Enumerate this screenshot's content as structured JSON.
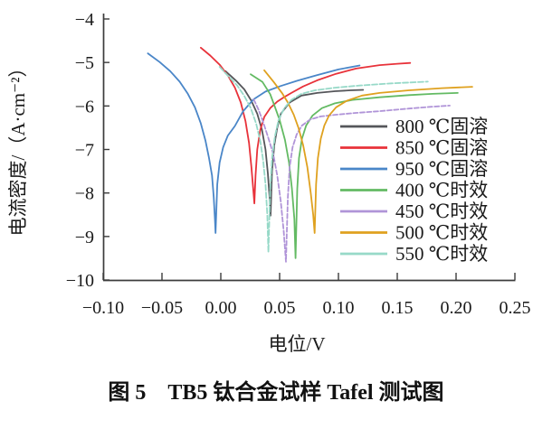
{
  "figure": {
    "caption": "图 5　TB5 钛合金试样 Tafel 测试图"
  },
  "chart_data": {
    "type": "line",
    "title": "",
    "xlabel": "电位/V",
    "ylabel": "电流密度/（A·cm⁻²）",
    "xlim": [
      -0.1,
      0.25
    ],
    "ylim": [
      -10,
      -4
    ],
    "grid": false,
    "legend_position": "inside-right",
    "axis_color": "#3c3c3c",
    "x_ticks": [
      "−0.10",
      "−0.05",
      "0.00",
      "0.05",
      "0.10",
      "0.15",
      "0.20",
      "0.25"
    ],
    "x_tick_values": [
      -0.1,
      -0.05,
      0.0,
      0.05,
      0.1,
      0.15,
      0.2,
      0.25
    ],
    "y_ticks": [
      "−4",
      "−5",
      "−6",
      "−7",
      "−8",
      "−9",
      "−10"
    ],
    "y_tick_values": [
      -4,
      -5,
      -6,
      -7,
      -8,
      -9,
      -10
    ],
    "series": [
      {
        "key": "800c-solution",
        "name": "800 ℃固溶",
        "color": "#55565a",
        "dash": "",
        "ecorr_V": 0.042,
        "icorr_log": -8.52,
        "points": [
          [
            0.004,
            -5.2
          ],
          [
            0.013,
            -5.42
          ],
          [
            0.02,
            -5.62
          ],
          [
            0.026,
            -5.88
          ],
          [
            0.031,
            -6.18
          ],
          [
            0.035,
            -6.55
          ],
          [
            0.038,
            -7.0
          ],
          [
            0.04,
            -7.55
          ],
          [
            0.0415,
            -8.1
          ],
          [
            0.0423,
            -8.52
          ],
          [
            0.0435,
            -7.5
          ],
          [
            0.0455,
            -6.9
          ],
          [
            0.048,
            -6.5
          ],
          [
            0.051,
            -6.18
          ],
          [
            0.0585,
            -5.92
          ],
          [
            0.0685,
            -5.76
          ],
          [
            0.082,
            -5.7
          ],
          [
            0.097,
            -5.66
          ],
          [
            0.11,
            -5.64
          ],
          [
            0.121,
            -5.63
          ]
        ]
      },
      {
        "key": "850c-solution",
        "name": "850 ℃固溶",
        "color": "#e8323a",
        "dash": "",
        "ecorr_V": 0.0285,
        "icorr_log": -8.24,
        "points": [
          [
            -0.017,
            -4.66
          ],
          [
            -0.009,
            -4.84
          ],
          [
            -0.001,
            -5.05
          ],
          [
            0.006,
            -5.3
          ],
          [
            0.012,
            -5.58
          ],
          [
            0.017,
            -5.92
          ],
          [
            0.021,
            -6.35
          ],
          [
            0.024,
            -6.85
          ],
          [
            0.026,
            -7.4
          ],
          [
            0.0275,
            -7.9
          ],
          [
            0.0285,
            -8.24
          ],
          [
            0.0295,
            -7.6
          ],
          [
            0.031,
            -7.0
          ],
          [
            0.0335,
            -6.55
          ],
          [
            0.037,
            -6.25
          ],
          [
            0.042,
            -6.05
          ],
          [
            0.048,
            -5.9
          ],
          [
            0.053,
            -5.81
          ],
          [
            0.06,
            -5.7
          ],
          [
            0.07,
            -5.55
          ],
          [
            0.082,
            -5.41
          ],
          [
            0.098,
            -5.26
          ],
          [
            0.115,
            -5.14
          ],
          [
            0.135,
            -5.06
          ],
          [
            0.15,
            -5.03
          ],
          [
            0.161,
            -5.01
          ]
        ]
      },
      {
        "key": "950c-solution",
        "name": "950 ℃固溶",
        "color": "#4a86c8",
        "dash": "",
        "ecorr_V": -0.004,
        "icorr_log": -8.92,
        "points": [
          [
            -0.062,
            -4.79
          ],
          [
            -0.052,
            -4.99
          ],
          [
            -0.043,
            -5.2
          ],
          [
            -0.035,
            -5.44
          ],
          [
            -0.028,
            -5.72
          ],
          [
            -0.022,
            -6.03
          ],
          [
            -0.017,
            -6.4
          ],
          [
            -0.013,
            -6.8
          ],
          [
            -0.01,
            -7.2
          ],
          [
            -0.0075,
            -7.6
          ],
          [
            -0.006,
            -8.1
          ],
          [
            -0.005,
            -8.6
          ],
          [
            -0.0045,
            -8.92
          ],
          [
            -0.003,
            -7.8
          ],
          [
            -0.001,
            -7.3
          ],
          [
            0.002,
            -6.95
          ],
          [
            0.006,
            -6.68
          ],
          [
            0.012,
            -6.46
          ],
          [
            0.019,
            -6.12
          ],
          [
            0.0277,
            -5.85
          ],
          [
            0.038,
            -5.67
          ],
          [
            0.051,
            -5.54
          ],
          [
            0.065,
            -5.42
          ],
          [
            0.082,
            -5.29
          ],
          [
            0.1,
            -5.16
          ],
          [
            0.118,
            -5.07
          ]
        ]
      },
      {
        "key": "400c-aging",
        "name": "400 ℃时效",
        "color": "#63ba63",
        "dash": "",
        "ecorr_V": 0.0635,
        "icorr_log": -9.5,
        "points": [
          [
            0.0254,
            -5.27
          ],
          [
            0.0355,
            -5.45
          ],
          [
            0.042,
            -5.73
          ],
          [
            0.0455,
            -5.98
          ],
          [
            0.05,
            -6.32
          ],
          [
            0.0545,
            -6.78
          ],
          [
            0.058,
            -7.3
          ],
          [
            0.0605,
            -7.9
          ],
          [
            0.0625,
            -8.6
          ],
          [
            0.0635,
            -9.5
          ],
          [
            0.065,
            -7.9
          ],
          [
            0.0665,
            -7.2
          ],
          [
            0.069,
            -6.75
          ],
          [
            0.0725,
            -6.45
          ],
          [
            0.078,
            -6.22
          ],
          [
            0.086,
            -6.05
          ],
          [
            0.097,
            -5.94
          ],
          [
            0.112,
            -5.86
          ],
          [
            0.135,
            -5.8
          ],
          [
            0.16,
            -5.75
          ],
          [
            0.18,
            -5.72
          ],
          [
            0.2015,
            -5.7
          ]
        ]
      },
      {
        "key": "450c-aging",
        "name": "450 ℃时效",
        "color": "#b094d8",
        "dash": "5 2.5",
        "ecorr_V": 0.0554,
        "icorr_log": -9.58,
        "points": [
          [
            0.028,
            -5.85
          ],
          [
            0.032,
            -6.08
          ],
          [
            0.036,
            -6.37
          ],
          [
            0.04,
            -6.7
          ],
          [
            0.0445,
            -7.1
          ],
          [
            0.048,
            -7.6
          ],
          [
            0.051,
            -8.2
          ],
          [
            0.0535,
            -8.9
          ],
          [
            0.0554,
            -9.58
          ],
          [
            0.057,
            -8.1
          ],
          [
            0.0585,
            -7.4
          ],
          [
            0.061,
            -6.95
          ],
          [
            0.0645,
            -6.65
          ],
          [
            0.069,
            -6.45
          ],
          [
            0.076,
            -6.31
          ],
          [
            0.085,
            -6.24
          ],
          [
            0.098,
            -6.2
          ],
          [
            0.115,
            -6.16
          ],
          [
            0.135,
            -6.12
          ],
          [
            0.16,
            -6.06
          ],
          [
            0.178,
            -6.02
          ],
          [
            0.1946,
            -5.99
          ]
        ]
      },
      {
        "key": "500c-aging",
        "name": "500 ℃时效",
        "color": "#dfa11f",
        "dash": "",
        "ecorr_V": 0.0798,
        "icorr_log": -8.92,
        "points": [
          [
            0.0369,
            -5.18
          ],
          [
            0.045,
            -5.45
          ],
          [
            0.052,
            -5.7
          ],
          [
            0.057,
            -5.92
          ],
          [
            0.062,
            -6.2
          ],
          [
            0.066,
            -6.5
          ],
          [
            0.07,
            -6.9
          ],
          [
            0.0735,
            -7.4
          ],
          [
            0.0765,
            -8.0
          ],
          [
            0.0785,
            -8.5
          ],
          [
            0.0798,
            -8.92
          ],
          [
            0.081,
            -7.8
          ],
          [
            0.0825,
            -7.2
          ],
          [
            0.085,
            -6.75
          ],
          [
            0.088,
            -6.45
          ],
          [
            0.092,
            -6.22
          ],
          [
            0.098,
            -6.03
          ],
          [
            0.107,
            -5.88
          ],
          [
            0.12,
            -5.76
          ],
          [
            0.135,
            -5.7
          ],
          [
            0.16,
            -5.64
          ],
          [
            0.188,
            -5.59
          ],
          [
            0.2138,
            -5.56
          ]
        ]
      },
      {
        "key": "550c-aging",
        "name": "550 ℃时效",
        "color": "#97d9c8",
        "dash": "6 2.5",
        "ecorr_V": 0.0405,
        "icorr_log": -9.36,
        "points": [
          [
            -0.001,
            -5.1
          ],
          [
            0.007,
            -5.33
          ],
          [
            0.014,
            -5.53
          ],
          [
            0.02,
            -5.77
          ],
          [
            0.0255,
            -6.05
          ],
          [
            0.03,
            -6.4
          ],
          [
            0.0335,
            -6.8
          ],
          [
            0.036,
            -7.25
          ],
          [
            0.038,
            -7.8
          ],
          [
            0.0395,
            -8.5
          ],
          [
            0.0405,
            -9.36
          ],
          [
            0.042,
            -7.9
          ],
          [
            0.0435,
            -7.2
          ],
          [
            0.046,
            -6.7
          ],
          [
            0.049,
            -6.33
          ],
          [
            0.054,
            -6.05
          ],
          [
            0.06,
            -5.86
          ],
          [
            0.0685,
            -5.72
          ],
          [
            0.08,
            -5.64
          ],
          [
            0.097,
            -5.58
          ],
          [
            0.118,
            -5.53
          ],
          [
            0.145,
            -5.48
          ],
          [
            0.176,
            -5.44
          ]
        ]
      }
    ]
  }
}
